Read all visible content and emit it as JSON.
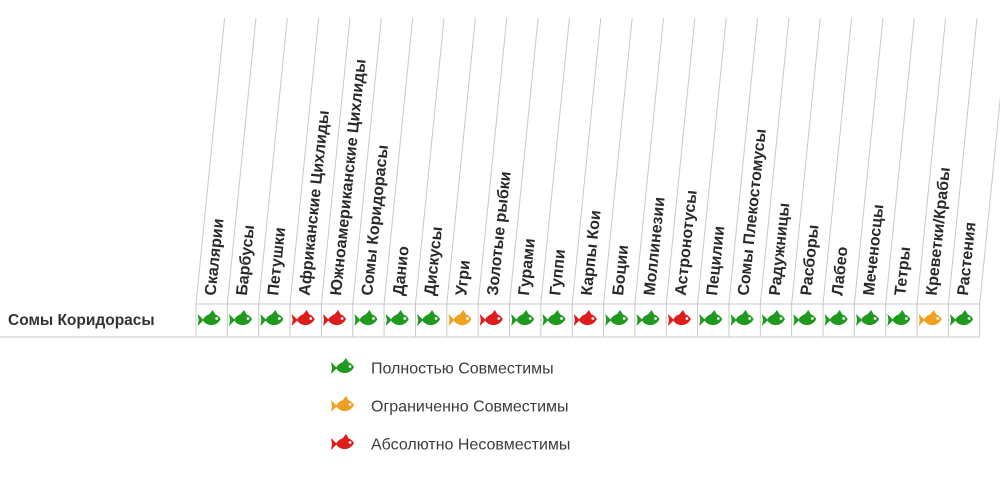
{
  "chart_data": {
    "type": "table",
    "row_label": "Сомы Коридорасы",
    "columns": [
      "Скалярии",
      "Барбусы",
      "Петушки",
      "Африканские Цихлиды",
      "Южноамериканские Цихлиды",
      "Сомы Коридорасы",
      "Данио",
      "Дискусы",
      "Угри",
      "Золотые рыбки",
      "Гурами",
      "Гуппи",
      "Карпы Кои",
      "Боции",
      "Моллинезии",
      "Астронотусы",
      "Пецилии",
      "Сомы Плекостомусы",
      "Радужницы",
      "Расборы",
      "Лабео",
      "Меченосцы",
      "Тетры",
      "Креветки/Крабы",
      "Растения"
    ],
    "values": [
      "compatible",
      "compatible",
      "compatible",
      "incompatible",
      "incompatible",
      "compatible",
      "compatible",
      "compatible",
      "limited",
      "incompatible",
      "compatible",
      "compatible",
      "incompatible",
      "compatible",
      "compatible",
      "incompatible",
      "compatible",
      "compatible",
      "compatible",
      "compatible",
      "compatible",
      "compatible",
      "compatible",
      "limited",
      "compatible"
    ],
    "legend": [
      {
        "key": "compatible",
        "label": "Полностью Совместимы",
        "color": "#1f9a1f"
      },
      {
        "key": "limited",
        "label": "Ограниченно  Совместимы",
        "color": "#f0a020"
      },
      {
        "key": "incompatible",
        "label": "Абсолютно  Несовместимы",
        "color": "#dd1c1c"
      }
    ]
  },
  "icons": {
    "cell": "fish-icon"
  }
}
